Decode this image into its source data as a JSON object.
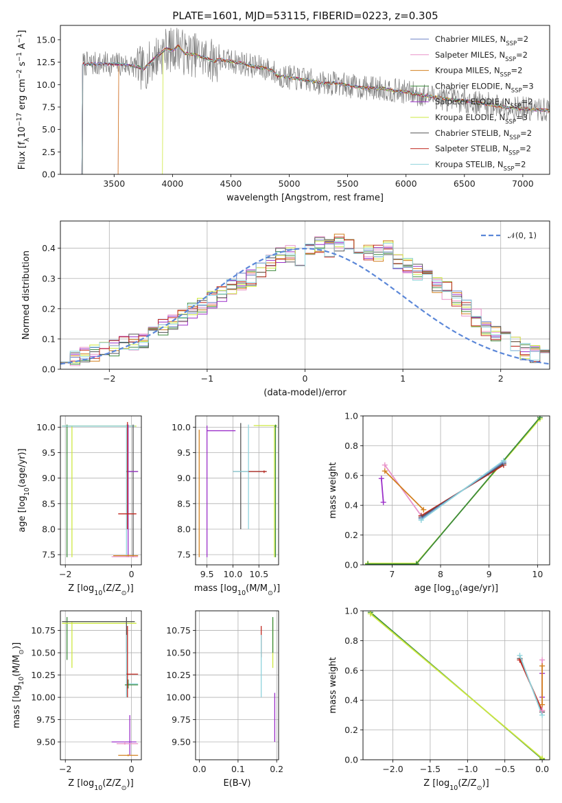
{
  "figure": {
    "title": "PLATE=1601, MJD=53115, FIBERID=0223, z=0.305"
  },
  "colors": {
    "Chabrier MILES": "#6a7fc4",
    "Salpeter MILES": "#e891c8",
    "Kroupa MILES": "#d2801f",
    "Chabrier ELODIE": "#3c8a3c",
    "Salpeter ELODIE": "#9b2fc9",
    "Kroupa ELODIE": "#cde83f",
    "Chabrier STELIB": "#555555",
    "Salpeter STELIB": "#c0271f",
    "Kroupa STELIB": "#8fd3dc"
  },
  "chart_data": [
    {
      "id": "spectrum",
      "type": "line",
      "xlabel": "wavelength [Angstrom, rest frame]",
      "ylabel_parts": [
        "Flux [f",
        "λ",
        "10",
        "−17",
        " erg cm",
        "−2",
        " s",
        "−1",
        " A",
        "−1",
        "]"
      ],
      "xlim": [
        3040,
        7230
      ],
      "ylim": [
        0,
        16.6
      ],
      "xticks": [
        3500,
        4000,
        4500,
        5000,
        5500,
        6000,
        6500,
        7000
      ],
      "yticks": [
        0.0,
        2.5,
        5.0,
        7.5,
        10.0,
        12.5,
        15.0
      ],
      "xticklabels": [
        "3500",
        "4000",
        "4500",
        "5000",
        "5500",
        "6000",
        "6500",
        "7000"
      ],
      "yticklabels": [
        "0.0",
        "2.5",
        "5.0",
        "7.5",
        "10.0",
        "12.5",
        "15.0"
      ],
      "legend_position": "top-right",
      "legend": [
        {
          "name": "Chabrier MILES, N",
          "sub": "SSP",
          "tail": "=2",
          "color": "#6a7fc4"
        },
        {
          "name": "Salpeter MILES, N",
          "sub": "SSP",
          "tail": "=2",
          "color": "#e891c8"
        },
        {
          "name": "Kroupa MILES, N",
          "sub": "SSP",
          "tail": "=2",
          "color": "#d2801f"
        },
        {
          "name": "Chabrier ELODIE, N",
          "sub": "SSP",
          "tail": "=3",
          "color": "#3c8a3c"
        },
        {
          "name": "Salpeter ELODIE, N",
          "sub": "SSP",
          "tail": "=2",
          "color": "#9b2fc9"
        },
        {
          "name": "Kroupa ELODIE, N",
          "sub": "SSP",
          "tail": "=3",
          "color": "#cde83f"
        },
        {
          "name": "Chabrier STELIB, N",
          "sub": "SSP",
          "tail": "=2",
          "color": "#555555"
        },
        {
          "name": "Salpeter STELIB, N",
          "sub": "SSP",
          "tail": "=2",
          "color": "#c0271f"
        },
        {
          "name": "Kroupa STELIB, N",
          "sub": "SSP",
          "tail": "=2",
          "color": "#8fd3dc"
        }
      ],
      "model_curve": {
        "x": [
          3500,
          3600,
          3700,
          3750,
          3800,
          3850,
          3900,
          3950,
          4000,
          4050,
          4100,
          4200,
          4300,
          4350,
          4400,
          4500,
          4600,
          4700,
          4800,
          4860,
          4900,
          5000,
          5100,
          5200,
          5300,
          5400,
          5500,
          5600,
          5700,
          5800,
          5900,
          6000,
          6100,
          6200,
          6300,
          6400,
          6500,
          6600,
          6700,
          6800,
          6900,
          7000,
          7100,
          7230
        ],
        "y": [
          12.3,
          12.2,
          12.0,
          11.7,
          12.3,
          13.0,
          13.5,
          14.0,
          13.8,
          14.3,
          13.5,
          13.3,
          12.9,
          12.6,
          12.8,
          12.6,
          12.4,
          12.0,
          11.8,
          11.5,
          11.0,
          10.8,
          10.6,
          10.4,
          10.1,
          10.2,
          9.9,
          9.7,
          9.6,
          9.6,
          9.3,
          9.2,
          8.9,
          8.7,
          8.5,
          8.3,
          8.2,
          8.0,
          7.8,
          7.6,
          7.4,
          7.3,
          7.2,
          7.1
        ]
      },
      "model_starts": [
        {
          "name": "Kroupa STELIB",
          "start": 3230
        },
        {
          "name": "Chabrier STELIB",
          "start": 3230
        },
        {
          "name": "Kroupa MILES",
          "start": 3540
        },
        {
          "name": "Salpeter MILES",
          "start": 3540
        },
        {
          "name": "Kroupa ELODIE",
          "start": 3920
        }
      ],
      "observed_color": "#7a7a7a",
      "observed_noise": 1.4,
      "observed_range": [
        3230,
        7230
      ]
    },
    {
      "id": "residuals",
      "type": "step",
      "xlabel": "(data-model)/error",
      "ylabel": "Normed distribution",
      "xlim": [
        -2.5,
        2.5
      ],
      "ylim": [
        0,
        0.49
      ],
      "xticks": [
        -2,
        -1,
        0,
        1,
        2
      ],
      "yticks": [
        0.0,
        0.1,
        0.2,
        0.3,
        0.4
      ],
      "xticklabels": [
        "−2",
        "−1",
        "0",
        "1",
        "2"
      ],
      "yticklabels": [
        "0.0",
        "0.1",
        "0.2",
        "0.3",
        "0.4"
      ],
      "grid": true,
      "legend_position": "top-right",
      "reference_label": "𝒩(0, 1)",
      "reference_color": "#5b87d8",
      "bin_start": -2.5,
      "bin_width": 0.1,
      "base_hist": [
        0.03,
        0.04,
        0.05,
        0.055,
        0.06,
        0.07,
        0.08,
        0.09,
        0.1,
        0.12,
        0.14,
        0.16,
        0.17,
        0.19,
        0.21,
        0.23,
        0.25,
        0.27,
        0.29,
        0.3,
        0.33,
        0.35,
        0.38,
        0.38,
        0.36,
        0.39,
        0.41,
        0.4,
        0.42,
        0.41,
        0.38,
        0.39,
        0.38,
        0.4,
        0.35,
        0.34,
        0.32,
        0.31,
        0.28,
        0.26,
        0.23,
        0.2,
        0.17,
        0.14,
        0.12,
        0.1,
        0.08,
        0.06,
        0.05,
        0.04
      ]
    },
    {
      "id": "age-vs-Z",
      "type": "errorbar",
      "xlabel_parts": [
        "Z [log",
        "10",
        "(Z/Z",
        "⊙",
        ")]"
      ],
      "ylabel_parts": [
        "age  [log",
        "10",
        "(age/yr)]"
      ],
      "xlim": [
        -2.15,
        0.3
      ],
      "ylim": [
        7.3,
        10.22
      ],
      "xticks": [
        -2,
        0
      ],
      "yticks": [
        7.5,
        8.0,
        8.5,
        9.0,
        9.5,
        10.0
      ],
      "xticklabels": [
        "−2",
        "0"
      ],
      "yticklabels": [
        "7.5",
        "8.0",
        "8.5",
        "9.0",
        "9.5",
        "10.0"
      ],
      "grid": true,
      "bars": [
        {
          "c": "#cde83f",
          "x": -1.8,
          "y": 10.02,
          "xe": [
            -2.1,
            0.15
          ],
          "ye": [
            7.45,
            10.03
          ]
        },
        {
          "c": "#3c8a3c",
          "x": -1.95,
          "y": 10.02,
          "xe": [
            -2.1,
            0.1
          ],
          "ye": [
            7.45,
            10.05
          ]
        },
        {
          "c": "#8fd3dc",
          "x": -0.15,
          "y": 10.02,
          "xe": [
            -2.1,
            0.1
          ],
          "ye": [
            7.45,
            10.05
          ]
        },
        {
          "c": "#555555",
          "x": 0.05,
          "y": 9.13,
          "xe": [
            -0.15,
            0.2
          ],
          "ye": [
            7.45,
            10.05
          ]
        },
        {
          "c": "#9b2fc9",
          "x": -0.1,
          "y": 9.13,
          "xe": [
            -0.1,
            0.2
          ],
          "ye": [
            7.45,
            10.05
          ]
        },
        {
          "c": "#c0271f",
          "x": -0.12,
          "y": 8.3,
          "xe": [
            -0.4,
            0.15
          ],
          "ye": [
            8.0,
            10.1
          ]
        },
        {
          "c": "#d2801f",
          "x": -0.1,
          "y": 7.48,
          "xe": [
            -0.55,
            0.2
          ],
          "ye": [
            7.45,
            7.5
          ]
        },
        {
          "c": "#e891c8",
          "x": -0.15,
          "y": 7.46,
          "xe": [
            -0.6,
            0.2
          ],
          "ye": [
            7.45,
            7.47
          ]
        }
      ]
    },
    {
      "id": "age-vs-mass",
      "type": "errorbar",
      "xlabel_parts": [
        "mass [log",
        "10",
        "(M/M",
        "⊙",
        ")]"
      ],
      "xlim": [
        9.28,
        10.88
      ],
      "ylim": [
        7.3,
        10.22
      ],
      "xticks": [
        9.5,
        10.0,
        10.5
      ],
      "yticks": [
        7.5,
        8.0,
        8.5,
        9.0,
        9.5,
        10.0
      ],
      "xticklabels": [
        "9.5",
        "10.0",
        "10.5"
      ],
      "yticklabels": [
        "7.5",
        "8.0",
        "8.5",
        "9.0",
        "9.5",
        "10.0"
      ],
      "grid": true,
      "bars": [
        {
          "c": "#d2801f",
          "x": 9.35,
          "y": 9.95,
          "xe": [
            9.35,
            9.35
          ],
          "ye": [
            7.45,
            9.95
          ]
        },
        {
          "c": "#9b2fc9",
          "x": 9.5,
          "y": 9.93,
          "xe": [
            9.5,
            10.05
          ],
          "ye": [
            7.45,
            10.03
          ]
        },
        {
          "c": "#555555",
          "x": 10.15,
          "y": 9.13,
          "xe": [
            10.0,
            10.65
          ],
          "ye": [
            8.0,
            10.08
          ]
        },
        {
          "c": "#8fd3dc",
          "x": 10.3,
          "y": 9.13,
          "xe": [
            10.0,
            10.65
          ],
          "ye": [
            8.0,
            10.05
          ]
        },
        {
          "c": "#c0271f",
          "x": 10.6,
          "y": 9.13,
          "xe": [
            10.3,
            10.65
          ],
          "ye": [
            9.1,
            9.15
          ]
        },
        {
          "c": "#cde83f",
          "x": 10.8,
          "y": 10.03,
          "xe": [
            10.4,
            10.85
          ],
          "ye": [
            7.45,
            10.03
          ]
        },
        {
          "c": "#3c8a3c",
          "x": 10.82,
          "y": 10.02,
          "xe": [
            10.8,
            10.84
          ],
          "ye": [
            7.45,
            10.05
          ]
        }
      ]
    },
    {
      "id": "weight-vs-age",
      "type": "line",
      "xlabel_parts": [
        "age  [log",
        "10",
        "(age/yr)]"
      ],
      "ylabel": "mass weight",
      "xlim": [
        6.4,
        10.25
      ],
      "ylim": [
        0,
        1.0
      ],
      "xticks": [
        7,
        8,
        9,
        10
      ],
      "yticks": [
        0.0,
        0.2,
        0.4,
        0.6,
        0.8,
        1.0
      ],
      "xticklabels": [
        "7",
        "8",
        "9",
        "10"
      ],
      "yticklabels": [
        "0.0",
        "0.2",
        "0.4",
        "0.6",
        "0.8",
        "1.0"
      ],
      "grid": true,
      "series": [
        {
          "c": "#cde83f",
          "x": [
            6.5,
            7.5,
            10.05
          ],
          "y": [
            0.01,
            0.01,
            0.98
          ]
        },
        {
          "c": "#3c8a3c",
          "x": [
            6.5,
            7.5,
            10.05
          ],
          "y": [
            0.005,
            0.005,
            0.99
          ]
        },
        {
          "c": "#9b2fc9",
          "x": [
            6.78,
            6.82
          ],
          "y": [
            0.58,
            0.42
          ]
        },
        {
          "c": "#e891c8",
          "x": [
            6.85,
            7.6
          ],
          "y": [
            0.67,
            0.33
          ]
        },
        {
          "c": "#d2801f",
          "x": [
            6.85,
            7.65
          ],
          "y": [
            0.63,
            0.37
          ]
        },
        {
          "c": "#c0271f",
          "x": [
            7.6,
            9.3
          ],
          "y": [
            0.33,
            0.67
          ]
        },
        {
          "c": "#555555",
          "x": [
            7.6,
            9.3
          ],
          "y": [
            0.32,
            0.68
          ]
        },
        {
          "c": "#6a7fc4",
          "x": [
            7.6,
            9.3
          ],
          "y": [
            0.31,
            0.69
          ]
        },
        {
          "c": "#8fd3dc",
          "x": [
            7.6,
            9.3
          ],
          "y": [
            0.3,
            0.7
          ]
        }
      ]
    },
    {
      "id": "mass-vs-Z",
      "type": "errorbar",
      "xlabel_parts": [
        "Z [log",
        "10",
        "(Z/Z",
        "⊙",
        ")]"
      ],
      "ylabel_parts": [
        "mass [log",
        "10",
        "(M/M",
        "⊙",
        ")]"
      ],
      "xlim": [
        -2.15,
        0.3
      ],
      "ylim": [
        9.3,
        10.97
      ],
      "xticks": [
        -2,
        0
      ],
      "yticks": [
        9.5,
        9.75,
        10.0,
        10.25,
        10.5,
        10.75
      ],
      "xticklabels": [
        "−2",
        "0"
      ],
      "yticklabels": [
        "9.50",
        "9.75",
        "10.00",
        "10.25",
        "10.50",
        "10.75"
      ],
      "grid": true,
      "bars": [
        {
          "c": "#3c8a3c",
          "x": -1.95,
          "y": 10.85,
          "xe": [
            -2.1,
            0.1
          ],
          "ye": [
            10.42,
            10.9
          ]
        },
        {
          "c": "#cde83f",
          "x": -1.8,
          "y": 10.83,
          "xe": [
            -2.1,
            0.15
          ],
          "ye": [
            10.33,
            10.85
          ]
        },
        {
          "c": "#555555",
          "x": -0.15,
          "y": 10.85,
          "xe": [
            -2.1,
            0.1
          ],
          "ye": [
            10.5,
            10.9
          ]
        },
        {
          "c": "#8fd3dc",
          "x": -0.15,
          "y": 10.15,
          "xe": [
            -0.15,
            0.2
          ],
          "ye": [
            10.0,
            10.7
          ]
        },
        {
          "c": "#3c8a3c",
          "x": -0.1,
          "y": 10.14,
          "xe": [
            -0.2,
            0.2
          ],
          "ye": [
            10.1,
            10.2
          ]
        },
        {
          "c": "#c0271f",
          "x": -0.12,
          "y": 10.26,
          "xe": [
            -0.15,
            0.2
          ],
          "ye": [
            10.0,
            10.8
          ]
        },
        {
          "c": "#9b2fc9",
          "x": -0.05,
          "y": 9.5,
          "xe": [
            -0.6,
            0.15
          ],
          "ye": [
            9.35,
            9.8
          ]
        },
        {
          "c": "#e891c8",
          "x": -0.2,
          "y": 9.48,
          "xe": [
            -0.45,
            0.2
          ],
          "ye": [
            9.47,
            9.5
          ]
        },
        {
          "c": "#d2801f",
          "x": -0.1,
          "y": 9.35,
          "xe": [
            -0.4,
            0.2
          ],
          "ye": [
            9.34,
            9.36
          ]
        }
      ]
    },
    {
      "id": "mass-vs-EBV",
      "type": "errorbar",
      "xlabel": "E(B-V)",
      "xlim": [
        -0.01,
        0.205
      ],
      "ylim": [
        9.3,
        10.97
      ],
      "xticks": [
        0.0,
        0.1,
        0.2
      ],
      "yticks": [
        9.5,
        9.75,
        10.0,
        10.25,
        10.5,
        10.75
      ],
      "xticklabels": [
        "0.0",
        "0.1",
        "0.2"
      ],
      "yticklabels": [
        "9.50",
        "9.75",
        "10.00",
        "10.25",
        "10.50",
        "10.75"
      ],
      "grid": true,
      "bars": [
        {
          "c": "#c0271f",
          "x": 0.16,
          "y": 10.7,
          "xe": [
            0.16,
            0.16
          ],
          "ye": [
            10.45,
            10.8
          ]
        },
        {
          "c": "#8fd3dc",
          "x": 0.16,
          "y": 10.4,
          "xe": [
            0.16,
            0.16
          ],
          "ye": [
            10.0,
            10.7
          ]
        },
        {
          "c": "#cde83f",
          "x": 0.19,
          "y": 10.8,
          "xe": [
            0.19,
            0.19
          ],
          "ye": [
            10.33,
            10.87
          ]
        },
        {
          "c": "#3c8a3c",
          "x": 0.19,
          "y": 10.85,
          "xe": [
            0.19,
            0.19
          ],
          "ye": [
            10.5,
            10.9
          ]
        },
        {
          "c": "#9b2fc9",
          "x": 0.195,
          "y": 9.8,
          "xe": [
            0.195,
            0.195
          ],
          "ye": [
            9.5,
            10.05
          ]
        }
      ]
    },
    {
      "id": "weight-vs-Z",
      "type": "line",
      "xlabel_parts": [
        "Z [log",
        "10",
        "(Z/Z",
        "⊙",
        ")]"
      ],
      "ylabel": "mass weight",
      "xlim": [
        -2.4,
        0.1
      ],
      "ylim": [
        0,
        1.0
      ],
      "xticks": [
        -2.0,
        -1.5,
        -1.0,
        -0.5,
        0.0
      ],
      "yticks": [
        0.0,
        0.2,
        0.4,
        0.6,
        0.8,
        1.0
      ],
      "xticklabels": [
        "−2.0",
        "−1.5",
        "−1.0",
        "−0.5",
        "0.0"
      ],
      "yticklabels": [
        "0.0",
        "0.2",
        "0.4",
        "0.6",
        "0.8",
        "1.0"
      ],
      "grid": true,
      "series": [
        {
          "c": "#3c8a3c",
          "x": [
            -2.3,
            0.0
          ],
          "y": [
            0.99,
            0.005
          ]
        },
        {
          "c": "#cde83f",
          "x": [
            -2.3,
            0.0
          ],
          "y": [
            0.98,
            0.01
          ]
        },
        {
          "c": "#555555",
          "x": [
            -0.3,
            0.0
          ],
          "y": [
            0.68,
            0.32
          ]
        },
        {
          "c": "#c0271f",
          "x": [
            -0.3,
            0.0
          ],
          "y": [
            0.67,
            0.33
          ]
        },
        {
          "c": "#8fd3dc",
          "x": [
            -0.3,
            0.0
          ],
          "y": [
            0.7,
            0.3
          ]
        },
        {
          "c": "#9b2fc9",
          "x": [
            0.0,
            0.0
          ],
          "y": [
            0.58,
            0.42
          ]
        },
        {
          "c": "#e891c8",
          "x": [
            0.0,
            0.0
          ],
          "y": [
            0.67,
            0.33
          ]
        },
        {
          "c": "#d2801f",
          "x": [
            0.0,
            0.0
          ],
          "y": [
            0.63,
            0.37
          ]
        }
      ]
    }
  ]
}
